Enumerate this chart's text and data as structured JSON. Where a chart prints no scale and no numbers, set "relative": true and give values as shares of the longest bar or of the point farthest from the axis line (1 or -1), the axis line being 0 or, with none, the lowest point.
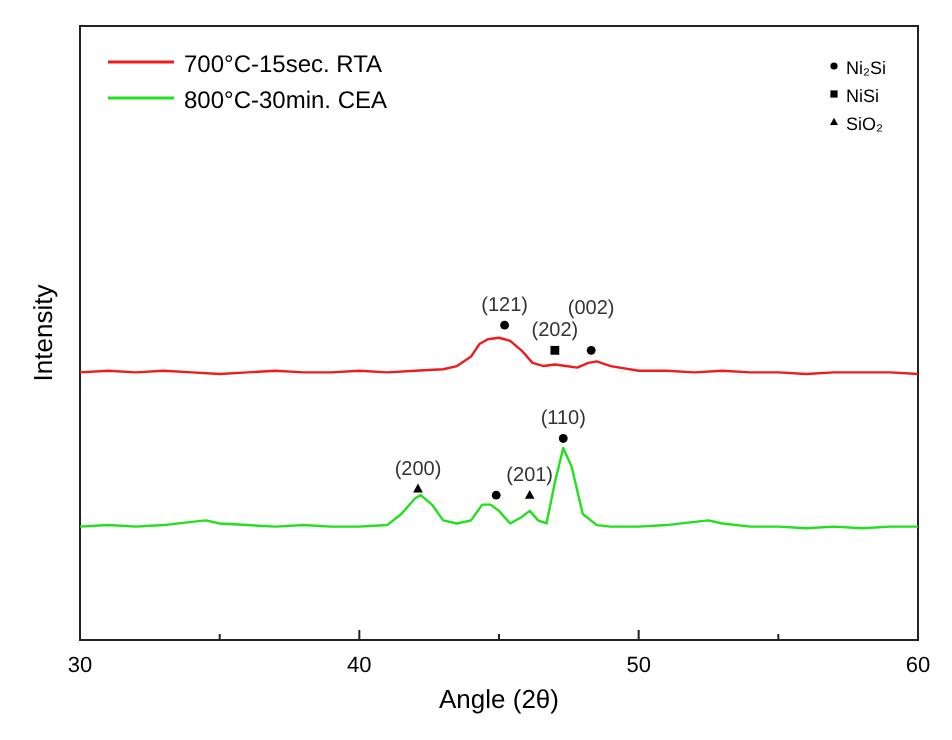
{
  "chart_data": {
    "type": "line",
    "relative": true,
    "xlabel": "Angle (2θ)",
    "ylabel": "Intensity",
    "xlim": [
      30,
      60
    ],
    "xticks": [
      30,
      {
        "value": 35,
        "label": null
      },
      40,
      {
        "value": 45,
        "label": null
      },
      50,
      {
        "value": 55,
        "label": null
      },
      60
    ],
    "legend": "top left",
    "grid": false,
    "series": [
      {
        "name": "700°C-15sec. RTA",
        "color": "#ee1c1c",
        "x": [
          30,
          31,
          32,
          33,
          34,
          35,
          36,
          37,
          38,
          39,
          40,
          41,
          42,
          43,
          43.5,
          44,
          44.3,
          44.6,
          45,
          45.4,
          45.8,
          46.2,
          46.6,
          47,
          47.4,
          47.8,
          48.2,
          48.5,
          49,
          50,
          51,
          52,
          53,
          54,
          55,
          56,
          57,
          58,
          59,
          60
        ],
        "values": [
          0.85,
          0.855,
          0.85,
          0.855,
          0.85,
          0.845,
          0.85,
          0.855,
          0.85,
          0.85,
          0.855,
          0.85,
          0.855,
          0.86,
          0.87,
          0.9,
          0.94,
          0.955,
          0.96,
          0.95,
          0.92,
          0.88,
          0.87,
          0.875,
          0.87,
          0.865,
          0.88,
          0.885,
          0.87,
          0.855,
          0.855,
          0.85,
          0.855,
          0.85,
          0.85,
          0.845,
          0.85,
          0.85,
          0.85,
          0.845
        ]
      },
      {
        "name": "800°C-30min. CEA",
        "color": "#22e01e",
        "x": [
          30,
          31,
          32,
          33,
          34,
          34.5,
          35,
          36,
          37,
          38,
          39,
          40,
          41,
          41.5,
          42,
          42.2,
          42.6,
          43,
          43.5,
          44,
          44.4,
          44.7,
          45,
          45.4,
          45.8,
          46.1,
          46.4,
          46.7,
          47,
          47.3,
          47.6,
          48,
          48.5,
          49,
          50,
          51,
          52,
          52.5,
          53,
          54,
          55,
          56,
          57,
          58,
          59,
          60
        ],
        "values": [
          0.36,
          0.365,
          0.36,
          0.365,
          0.375,
          0.38,
          0.37,
          0.365,
          0.36,
          0.365,
          0.36,
          0.36,
          0.365,
          0.4,
          0.45,
          0.46,
          0.43,
          0.38,
          0.37,
          0.38,
          0.43,
          0.43,
          0.41,
          0.37,
          0.39,
          0.41,
          0.38,
          0.37,
          0.5,
          0.61,
          0.55,
          0.4,
          0.365,
          0.36,
          0.36,
          0.365,
          0.375,
          0.38,
          0.37,
          0.36,
          0.36,
          0.355,
          0.36,
          0.355,
          0.36,
          0.36
        ]
      },
      {
        "name": "Ni₂Si",
        "type": "scatter",
        "marker": "circle",
        "color": "#000000",
        "x": [
          45.2,
          48.3,
          44.9,
          47.3
        ],
        "values": [
          1.0,
          0.92,
          0.46,
          0.64
        ]
      },
      {
        "name": "NiSi",
        "type": "scatter",
        "marker": "square",
        "color": "#000000",
        "x": [
          47.0
        ],
        "values": [
          0.92
        ]
      },
      {
        "name": "SiO₂",
        "type": "scatter",
        "marker": "triangle",
        "color": "#000000",
        "x": [
          42.1,
          46.1
        ],
        "values": [
          0.48,
          0.46
        ]
      }
    ],
    "annotations": [
      {
        "text": "(121)",
        "x": 45.2,
        "y": 1.0
      },
      {
        "text": "(202)",
        "x": 47.0,
        "y": 0.92
      },
      {
        "text": "(002)",
        "x": 48.3,
        "y": 0.92
      },
      {
        "text": "(200)",
        "x": 42.1,
        "y": 0.48
      },
      {
        "text": "(201)",
        "x": 46.1,
        "y": 0.46
      },
      {
        "text": "(110)",
        "x": 47.3,
        "y": 0.64
      }
    ]
  }
}
